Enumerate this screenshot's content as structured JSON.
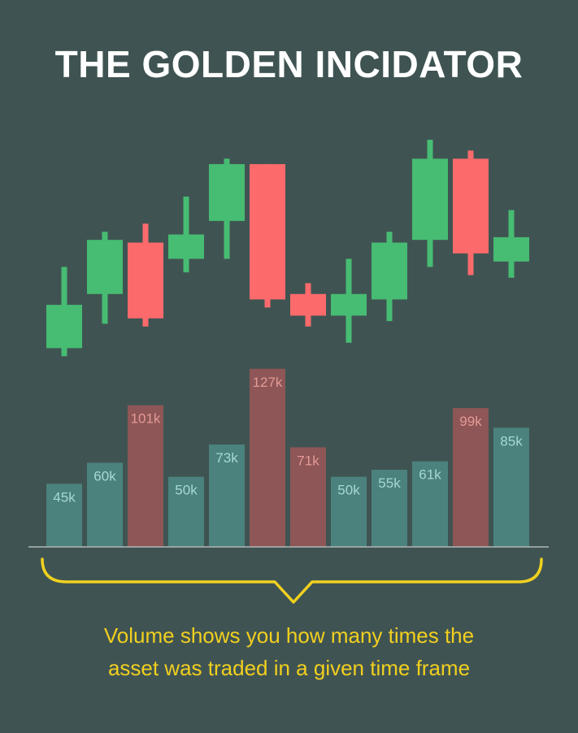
{
  "title": "THE GOLDEN INCIDATOR",
  "caption": {
    "line1": "Volume shows you how many times the",
    "line2": "asset was traded in a given time frame"
  },
  "colors": {
    "background": "#3f5452",
    "up": "#47bc73",
    "down": "#fc6a6c",
    "volume_up": "#4b827d",
    "volume_down": "#8e5656",
    "volume_label_up": "#a7d8d2",
    "volume_label_down": "#e39a96",
    "brace": "#f2d11f",
    "baseline": "#b0b8b7"
  },
  "chart_data": [
    {
      "type": "candlestick",
      "price_range": [
        0,
        100
      ],
      "candles": [
        {
          "direction": "up",
          "open": 17,
          "close": 33,
          "high": 47,
          "low": 14
        },
        {
          "direction": "up",
          "open": 37,
          "close": 57,
          "high": 60,
          "low": 26
        },
        {
          "direction": "down",
          "open": 56,
          "close": 28,
          "high": 63,
          "low": 25
        },
        {
          "direction": "up",
          "open": 50,
          "close": 59,
          "high": 73,
          "low": 45
        },
        {
          "direction": "up",
          "open": 64,
          "close": 85,
          "high": 87,
          "low": 50
        },
        {
          "direction": "down",
          "open": 85,
          "close": 35,
          "high": 85,
          "low": 32
        },
        {
          "direction": "down",
          "open": 37,
          "close": 29,
          "high": 41,
          "low": 25
        },
        {
          "direction": "up",
          "open": 29,
          "close": 37,
          "high": 50,
          "low": 19
        },
        {
          "direction": "up",
          "open": 35,
          "close": 56,
          "high": 60,
          "low": 27
        },
        {
          "direction": "up",
          "open": 57,
          "close": 87,
          "high": 94,
          "low": 47
        },
        {
          "direction": "down",
          "open": 87,
          "close": 52,
          "high": 90,
          "low": 44
        },
        {
          "direction": "up",
          "open": 49,
          "close": 58,
          "high": 68,
          "low": 43
        }
      ]
    },
    {
      "type": "bar",
      "values": [
        45,
        60,
        101,
        50,
        73,
        127,
        71,
        50,
        55,
        61,
        99,
        85
      ],
      "labels": [
        "45k",
        "60k",
        "101k",
        "50k",
        "73k",
        "127k",
        "71k",
        "50k",
        "55k",
        "61k",
        "99k",
        "85k"
      ],
      "directions": [
        "up",
        "up",
        "down",
        "up",
        "up",
        "down",
        "down",
        "up",
        "up",
        "up",
        "down",
        "up"
      ],
      "ylim": [
        0,
        135
      ]
    }
  ]
}
